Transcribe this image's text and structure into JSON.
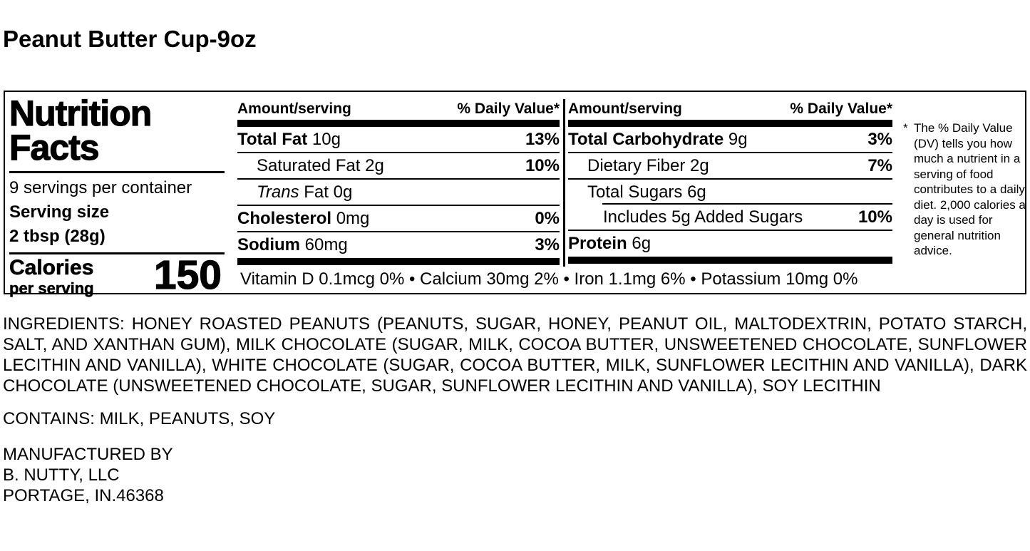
{
  "page_title": "Peanut Butter Cup-9oz",
  "label": {
    "heading_line1": "Nutrition",
    "heading_line2": "Facts",
    "servings_per_container": "9 servings per container",
    "serving_size_label": "Serving size",
    "serving_size_value": "2 tbsp (28g)",
    "calories_label": "Calories",
    "calories_sub": "per serving",
    "calories_value": "150",
    "col_header_amount": "Amount/serving",
    "col_header_dv": "% Daily Value*",
    "mid_rows": [
      {
        "name": "Total Fat",
        "amount": "10g",
        "dv": "13%"
      },
      {
        "name": "Saturated Fat",
        "amount": "2g",
        "dv": "10%"
      },
      {
        "name": "Trans",
        "amount": "Fat 0g",
        "dv": ""
      },
      {
        "name": "Cholesterol",
        "amount": "0mg",
        "dv": "0%"
      },
      {
        "name": "Sodium",
        "amount": "60mg",
        "dv": "3%"
      }
    ],
    "right_rows": [
      {
        "name": "Total Carbohydrate",
        "amount": "9g",
        "dv": "3%"
      },
      {
        "name": "Dietary Fiber",
        "amount": "2g",
        "dv": "7%"
      },
      {
        "name": "Total Sugars",
        "amount": "6g",
        "dv": ""
      },
      {
        "name": "Includes 5g Added Sugars",
        "amount": "",
        "dv": "10%"
      },
      {
        "name": "Protein",
        "amount": "6g",
        "dv": ""
      }
    ],
    "micronutrients": "Vitamin D 0.1mcg 0% • Calcium 30mg 2% • Iron 1.1mg 6% • Potassium 10mg 0%",
    "footnote_mark": "*",
    "footnote": "The % Daily Value (DV) tells you how much a nutrient in a serving of food contributes to a daily diet. 2,000 calories a day is used for general nutrition advice."
  },
  "ingredients": "INGREDIENTS: HONEY ROASTED PEANUTS (PEANUTS, SUGAR, HONEY, PEANUT OIL, MALTODEXTRIN, POTATO STARCH, SALT, AND XANTHAN GUM), MILK CHOCOLATE (SUGAR, MILK, COCOA BUTTER, UNSWEETENED CHOCOLATE, SUNFLOWER LECITHIN AND VANILLA), WHITE CHOCOLATE (SUGAR, COCOA BUTTER, MILK, SUNFLOWER LECITHIN AND VANILLA), DARK CHOCOLATE (UNSWEETENED CHOCOLATE, SUGAR, SUNFLOWER LECITHIN AND VANILLA), SOY LECITHIN",
  "contains": "CONTAINS: MILK, PEANUTS, SOY",
  "manufacturer": {
    "line1": "MANUFACTURED BY",
    "line2": "B. NUTTY, LLC",
    "line3": "PORTAGE, IN.46368"
  },
  "colors": {
    "text": "#000000",
    "background": "#ffffff"
  }
}
